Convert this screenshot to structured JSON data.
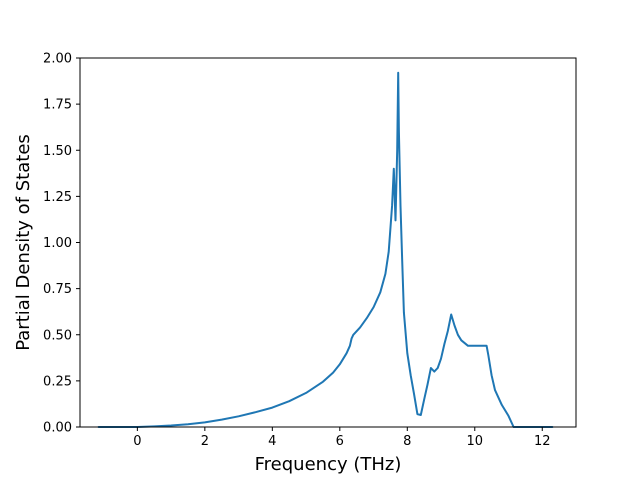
{
  "chart_data": {
    "type": "line",
    "title": "",
    "xlabel": "Frequency (THz)",
    "ylabel": "Partial Density of States",
    "xlim": [
      -1.7,
      13.0
    ],
    "ylim": [
      0.0,
      2.0
    ],
    "xticks": [
      0,
      2,
      4,
      6,
      8,
      10,
      12
    ],
    "xtick_labels": [
      "0",
      "2",
      "4",
      "6",
      "8",
      "10",
      "12"
    ],
    "yticks": [
      0.0,
      0.25,
      0.5,
      0.75,
      1.0,
      1.25,
      1.5,
      1.75,
      2.0
    ],
    "ytick_labels": [
      "0.00",
      "0.25",
      "0.50",
      "0.75",
      "1.00",
      "1.25",
      "1.50",
      "1.75",
      "2.00"
    ],
    "grid": false,
    "legend": "none",
    "series": [
      {
        "color": "#1f77b4",
        "x": [
          -1.15,
          -0.5,
          0.0,
          0.5,
          1.0,
          1.5,
          2.0,
          2.5,
          3.0,
          3.5,
          4.0,
          4.5,
          5.0,
          5.5,
          5.8,
          6.0,
          6.2,
          6.3,
          6.35,
          6.4,
          6.6,
          6.8,
          7.0,
          7.2,
          7.35,
          7.45,
          7.55,
          7.6,
          7.65,
          7.7,
          7.73,
          7.75,
          7.8,
          7.85,
          7.9,
          8.0,
          8.1,
          8.2,
          8.3,
          8.4,
          8.5,
          8.6,
          8.7,
          8.8,
          8.9,
          9.0,
          9.1,
          9.2,
          9.3,
          9.4,
          9.5,
          9.6,
          9.8,
          10.0,
          10.2,
          10.35,
          10.4,
          10.5,
          10.6,
          10.8,
          11.0,
          11.15,
          11.25,
          12.3
        ],
        "y": [
          0.0,
          0.0,
          0.0,
          0.003,
          0.008,
          0.015,
          0.025,
          0.04,
          0.058,
          0.08,
          0.105,
          0.14,
          0.185,
          0.245,
          0.295,
          0.34,
          0.4,
          0.44,
          0.48,
          0.5,
          0.54,
          0.59,
          0.65,
          0.73,
          0.83,
          0.95,
          1.2,
          1.4,
          1.12,
          1.5,
          1.92,
          1.6,
          1.2,
          0.9,
          0.62,
          0.4,
          0.28,
          0.18,
          0.07,
          0.065,
          0.15,
          0.23,
          0.32,
          0.3,
          0.32,
          0.37,
          0.45,
          0.52,
          0.61,
          0.55,
          0.5,
          0.47,
          0.44,
          0.44,
          0.44,
          0.44,
          0.39,
          0.28,
          0.2,
          0.12,
          0.06,
          0.0,
          0.0,
          0.0
        ]
      }
    ]
  }
}
